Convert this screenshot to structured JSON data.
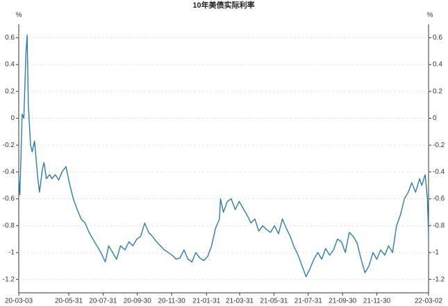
{
  "chart_data": {
    "type": "line",
    "title": "10年美债实际利率",
    "ylabel": "%",
    "y2label": "%",
    "ylim": [
      -1.3,
      0.7
    ],
    "yticks": [
      0.6,
      0.4,
      0.2,
      0,
      -0.2,
      -0.4,
      -0.6,
      -0.8,
      -1,
      -1.2
    ],
    "y2lim": [
      -1.3,
      0.7
    ],
    "y2ticks": [
      0.6,
      0.4,
      0.2,
      0,
      -0.2,
      -0.4,
      -0.6,
      -0.8,
      -1,
      -1.2
    ],
    "xticks": [
      "20-03-03",
      "20-05-31",
      "20-07-31",
      "20-09-30",
      "20-11-30",
      "21-01-31",
      "21-03-31",
      "21-05-31",
      "21-07-31",
      "21-09-30",
      "21-11-30",
      "22-03-02"
    ],
    "grid": true,
    "series": [
      {
        "name": "10年美债实际利率",
        "color": "#2b7bab",
        "x": [
          "20-03-03",
          "20-03-05",
          "20-03-09",
          "20-03-12",
          "20-03-16",
          "20-03-18",
          "20-03-20",
          "20-03-24",
          "20-03-27",
          "20-03-31",
          "20-04-06",
          "20-04-09",
          "20-04-14",
          "20-04-17",
          "20-04-21",
          "20-04-27",
          "20-05-01",
          "20-05-07",
          "20-05-13",
          "20-05-19",
          "20-05-26",
          "20-06-01",
          "20-06-08",
          "20-06-15",
          "20-06-22",
          "20-06-29",
          "20-07-06",
          "20-07-13",
          "20-07-20",
          "20-07-27",
          "20-08-04",
          "20-08-10",
          "20-08-17",
          "20-08-24",
          "20-08-31",
          "20-09-08",
          "20-09-15",
          "20-09-22",
          "20-09-29",
          "20-10-06",
          "20-10-13",
          "20-10-20",
          "20-10-27",
          "20-11-03",
          "20-11-10",
          "20-11-17",
          "20-11-24",
          "20-12-01",
          "20-12-08",
          "20-12-15",
          "20-12-22",
          "20-12-29",
          "21-01-05",
          "21-01-12",
          "21-01-19",
          "21-01-26",
          "21-02-02",
          "21-02-09",
          "21-02-16",
          "21-02-23",
          "21-02-25",
          "21-03-02",
          "21-03-09",
          "21-03-16",
          "21-03-23",
          "21-03-30",
          "21-04-06",
          "21-04-13",
          "21-04-20",
          "21-04-27",
          "21-05-04",
          "21-05-11",
          "21-05-18",
          "21-05-25",
          "21-06-01",
          "21-06-08",
          "21-06-15",
          "21-06-22",
          "21-06-29",
          "21-07-06",
          "21-07-13",
          "21-07-20",
          "21-07-27",
          "21-08-03",
          "21-08-10",
          "21-08-17",
          "21-08-24",
          "21-08-31",
          "21-09-07",
          "21-09-14",
          "21-09-21",
          "21-09-28",
          "21-10-05",
          "21-10-12",
          "21-10-19",
          "21-10-26",
          "21-11-02",
          "21-11-09",
          "21-11-16",
          "21-11-23",
          "21-11-30",
          "21-12-07",
          "21-12-14",
          "21-12-21",
          "21-12-28",
          "22-01-04",
          "22-01-11",
          "22-01-18",
          "22-01-25",
          "22-01-31",
          "22-02-07",
          "22-02-14",
          "22-02-18",
          "22-02-24",
          "22-02-28",
          "22-03-02"
        ],
        "values": [
          -0.45,
          -0.57,
          0.03,
          0.0,
          0.5,
          0.62,
          0.1,
          -0.2,
          -0.25,
          -0.17,
          -0.45,
          -0.55,
          -0.38,
          -0.33,
          -0.45,
          -0.42,
          -0.45,
          -0.42,
          -0.46,
          -0.4,
          -0.36,
          -0.48,
          -0.6,
          -0.68,
          -0.75,
          -0.78,
          -0.85,
          -0.9,
          -0.95,
          -1.0,
          -1.07,
          -0.95,
          -1.0,
          -1.05,
          -0.95,
          -0.98,
          -0.92,
          -0.95,
          -0.9,
          -0.88,
          -0.78,
          -0.85,
          -0.88,
          -0.92,
          -0.95,
          -0.98,
          -1.0,
          -1.02,
          -1.05,
          -1.04,
          -0.98,
          -1.05,
          -1.07,
          -1.0,
          -1.04,
          -1.06,
          -1.03,
          -0.95,
          -0.82,
          -0.75,
          -0.6,
          -0.7,
          -0.62,
          -0.6,
          -0.68,
          -0.62,
          -0.67,
          -0.72,
          -0.78,
          -0.75,
          -0.84,
          -0.8,
          -0.83,
          -0.85,
          -0.8,
          -0.86,
          -0.75,
          -0.82,
          -0.88,
          -0.96,
          -1.02,
          -1.1,
          -1.18,
          -1.12,
          -1.05,
          -1.0,
          -1.05,
          -0.97,
          -1.02,
          -0.98,
          -0.9,
          -0.92,
          -1.0,
          -0.85,
          -0.88,
          -0.93,
          -1.05,
          -1.15,
          -1.1,
          -1.0,
          -1.05,
          -0.98,
          -1.02,
          -0.95,
          -1.0,
          -0.8,
          -0.72,
          -0.6,
          -0.55,
          -0.48,
          -0.55,
          -0.45,
          -0.5,
          -0.42,
          -0.6,
          -0.88
        ]
      }
    ]
  }
}
